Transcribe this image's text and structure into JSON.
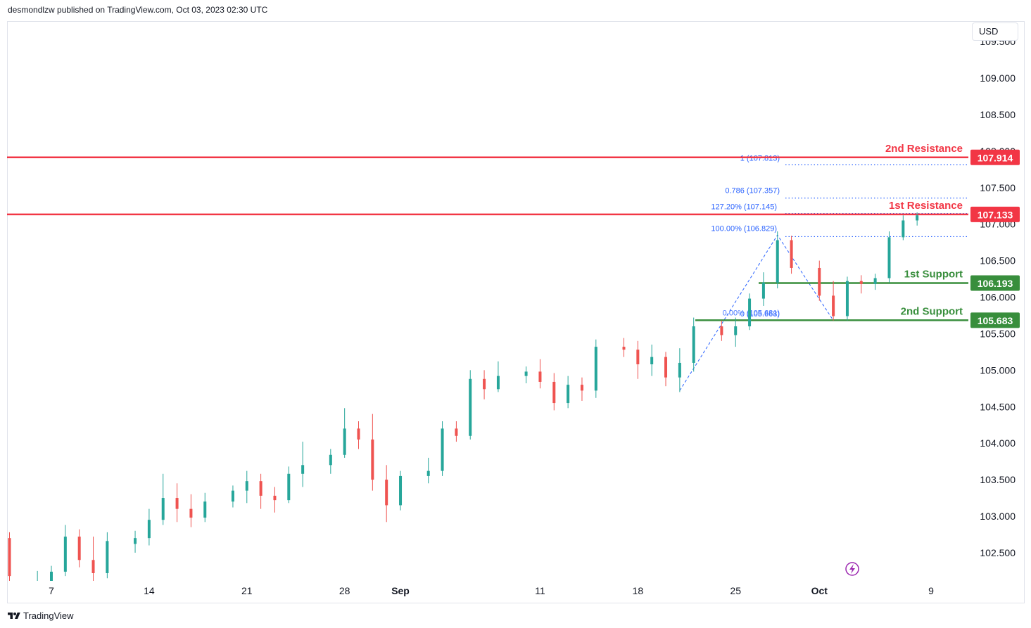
{
  "header": {
    "published_by": "desmondlzw published on TradingView.com, Oct 03, 2023 02:30 UTC"
  },
  "currency_button": "USD",
  "footer": {
    "brand": "TradingView"
  },
  "colors": {
    "up": "#26a69a",
    "down": "#ef5350",
    "resistance": "#f23645",
    "support": "#388e3c",
    "fib": "#2962ff",
    "lightning": "#9c27b0"
  },
  "icons": [
    "tradingview-logo-icon",
    "lightning-icon"
  ],
  "chart_data": {
    "type": "candlestick",
    "y_axis": {
      "min": 102.1,
      "max": 109.4,
      "position": "right",
      "ticks": [
        109.0,
        108.5,
        108.0,
        107.5,
        107.0,
        106.5,
        106.0,
        105.5,
        105.0,
        104.5,
        104.0,
        103.5,
        103.0,
        102.5
      ],
      "tick_labels": [
        "109.000",
        "108.500",
        "108.000",
        "107.500",
        "107.000",
        "106.500",
        "106.000",
        "105.500",
        "105.000",
        "104.500",
        "104.000",
        "103.500",
        "103.000",
        "102.500"
      ],
      "top_partial_label": "109.500"
    },
    "x_axis": {
      "start": "2023-08-02",
      "end": "2023-10-13",
      "tick_labels": [
        {
          "date": "2023-08-07",
          "label": "7"
        },
        {
          "date": "2023-08-14",
          "label": "14"
        },
        {
          "date": "2023-08-21",
          "label": "21"
        },
        {
          "date": "2023-08-28",
          "label": "28"
        },
        {
          "date": "2023-09-01",
          "label": "Sep",
          "bold": true
        },
        {
          "date": "2023-09-11",
          "label": "11"
        },
        {
          "date": "2023-09-18",
          "label": "18"
        },
        {
          "date": "2023-09-25",
          "label": "25"
        },
        {
          "date": "2023-10-01",
          "label": "Oct",
          "bold": true
        },
        {
          "date": "2023-10-09",
          "label": "9"
        }
      ]
    },
    "candles": [
      [
        "2023-08-03",
        102.55,
        102.88,
        102.42,
        102.7
      ],
      [
        "2023-08-04",
        102.7,
        102.78,
        102.05,
        102.18
      ],
      [
        "2023-08-06",
        102.05,
        102.25,
        101.96,
        102.1
      ],
      [
        "2023-08-07",
        102.1,
        102.32,
        101.98,
        102.24
      ],
      [
        "2023-08-08",
        102.24,
        102.88,
        102.18,
        102.72
      ],
      [
        "2023-08-09",
        102.72,
        102.82,
        102.3,
        102.4
      ],
      [
        "2023-08-10",
        102.4,
        102.72,
        102.1,
        102.22
      ],
      [
        "2023-08-11",
        102.22,
        102.78,
        102.15,
        102.66
      ],
      [
        "2023-08-13",
        102.62,
        102.8,
        102.5,
        102.7
      ],
      [
        "2023-08-14",
        102.7,
        103.1,
        102.6,
        102.95
      ],
      [
        "2023-08-15",
        102.95,
        103.58,
        102.88,
        103.25
      ],
      [
        "2023-08-16",
        103.25,
        103.45,
        102.92,
        103.1
      ],
      [
        "2023-08-17",
        103.1,
        103.3,
        102.85,
        102.98
      ],
      [
        "2023-08-18",
        102.98,
        103.32,
        102.92,
        103.2
      ],
      [
        "2023-08-20",
        103.2,
        103.42,
        103.12,
        103.35
      ],
      [
        "2023-08-21",
        103.35,
        103.62,
        103.18,
        103.48
      ],
      [
        "2023-08-22",
        103.48,
        103.58,
        103.1,
        103.28
      ],
      [
        "2023-08-23",
        103.28,
        103.4,
        103.05,
        103.22
      ],
      [
        "2023-08-24",
        103.22,
        103.68,
        103.18,
        103.58
      ],
      [
        "2023-08-25",
        103.58,
        104.02,
        103.4,
        103.7
      ],
      [
        "2023-08-27",
        103.7,
        103.92,
        103.58,
        103.84
      ],
      [
        "2023-08-28",
        103.84,
        104.48,
        103.8,
        104.2
      ],
      [
        "2023-08-29",
        104.2,
        104.3,
        103.92,
        104.05
      ],
      [
        "2023-08-30",
        104.05,
        104.4,
        103.35,
        103.5
      ],
      [
        "2023-08-31",
        103.5,
        103.7,
        102.92,
        103.15
      ],
      [
        "2023-09-01",
        103.15,
        103.62,
        103.08,
        103.55
      ],
      [
        "2023-09-03",
        103.55,
        103.8,
        103.45,
        103.62
      ],
      [
        "2023-09-04",
        103.62,
        104.3,
        103.55,
        104.2
      ],
      [
        "2023-09-05",
        104.2,
        104.3,
        104.02,
        104.1
      ],
      [
        "2023-09-06",
        104.1,
        105.0,
        104.05,
        104.88
      ],
      [
        "2023-09-07",
        104.88,
        105.0,
        104.6,
        104.74
      ],
      [
        "2023-09-08",
        104.74,
        105.12,
        104.7,
        104.92
      ],
      [
        "2023-09-10",
        104.92,
        105.05,
        104.82,
        104.98
      ],
      [
        "2023-09-11",
        104.98,
        105.15,
        104.75,
        104.84
      ],
      [
        "2023-09-12",
        104.84,
        104.96,
        104.45,
        104.55
      ],
      [
        "2023-09-13",
        104.55,
        104.92,
        104.48,
        104.8
      ],
      [
        "2023-09-14",
        104.8,
        104.9,
        104.58,
        104.72
      ],
      [
        "2023-09-15",
        104.72,
        105.42,
        104.62,
        105.32
      ],
      [
        "2023-09-17",
        105.32,
        105.44,
        105.18,
        105.28
      ],
      [
        "2023-09-18",
        105.28,
        105.4,
        104.88,
        105.08
      ],
      [
        "2023-09-19",
        105.08,
        105.35,
        104.92,
        105.18
      ],
      [
        "2023-09-20",
        105.18,
        105.25,
        104.78,
        104.9
      ],
      [
        "2023-09-21",
        104.9,
        105.3,
        104.7,
        105.1
      ],
      [
        "2023-09-22",
        105.1,
        105.72,
        104.98,
        105.6
      ],
      [
        "2023-09-24",
        105.6,
        105.68,
        105.4,
        105.48
      ],
      [
        "2023-09-25",
        105.48,
        105.72,
        105.32,
        105.6
      ],
      [
        "2023-09-26",
        105.6,
        106.05,
        105.55,
        105.98
      ],
      [
        "2023-09-27",
        105.98,
        106.34,
        105.88,
        106.2
      ],
      [
        "2023-09-28",
        106.2,
        106.9,
        106.12,
        106.78
      ],
      [
        "2023-09-29",
        106.78,
        106.84,
        106.32,
        106.4
      ],
      [
        "2023-10-01",
        106.4,
        106.5,
        105.95,
        106.02
      ],
      [
        "2023-10-02",
        106.02,
        106.22,
        105.68,
        105.74
      ],
      [
        "2023-10-03",
        105.74,
        106.28,
        105.68,
        106.22
      ],
      [
        "2023-10-04",
        106.22,
        106.3,
        106.05,
        106.18
      ],
      [
        "2023-10-05",
        106.18,
        106.32,
        106.1,
        106.26
      ],
      [
        "2023-10-06",
        106.26,
        106.9,
        106.2,
        106.82
      ],
      [
        "2023-10-07",
        106.82,
        107.12,
        106.78,
        107.05
      ],
      [
        "2023-10-08",
        107.05,
        107.16,
        106.98,
        107.12
      ]
    ],
    "levels": [
      {
        "name": "2nd Resistance",
        "value": 107.914,
        "label": "107.914",
        "kind": "resistance"
      },
      {
        "name": "1st Resistance",
        "value": 107.133,
        "label": "107.133",
        "kind": "resistance"
      },
      {
        "name": "1st Support",
        "value": 106.193,
        "label": "106.193",
        "kind": "support"
      },
      {
        "name": "2nd Support",
        "value": 105.683,
        "label": "105.683",
        "kind": "support"
      }
    ],
    "fib_levels": [
      {
        "label": "1 (107.813)",
        "value": 107.813
      },
      {
        "label": "0.786 (107.357)",
        "value": 107.357
      },
      {
        "label": "127.20% (107.145)",
        "value": 107.145
      },
      {
        "label": "100.00% (106.829)",
        "value": 106.829
      },
      {
        "label": "0.00% (105.681)",
        "value": 105.681
      },
      {
        "label": "0 (105.668)",
        "value": 105.668
      }
    ],
    "fib_pattern": [
      [
        "2023-09-21",
        104.72
      ],
      [
        "2023-09-28",
        106.85
      ],
      [
        "2023-10-02",
        105.68
      ]
    ]
  }
}
